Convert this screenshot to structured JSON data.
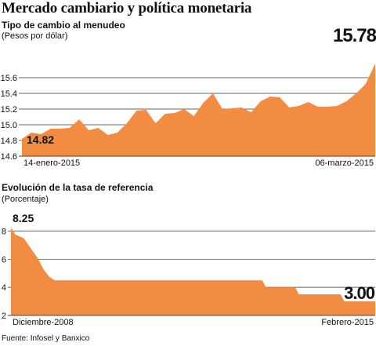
{
  "title": "Mercado cambiario y política monetaria",
  "colors": {
    "fill": "#F38C43",
    "grid": "#333333",
    "text": "#111111"
  },
  "source": "Fuente: Infosel y Banxico",
  "chart_data": [
    {
      "type": "area",
      "title": "Tipo de cambio al menudeo",
      "subtitle": "(Pesos por dólar)",
      "x_start_label": "14-enero-2015",
      "x_end_label": "06-marzo-2015",
      "ylim": [
        14.6,
        15.8
      ],
      "yticks": [
        "14.6",
        "14.8",
        "15.0",
        "15.2",
        "15.4",
        "15.6"
      ],
      "grid": true,
      "values": [
        14.82,
        14.9,
        14.88,
        14.95,
        14.95,
        14.96,
        15.07,
        14.93,
        14.96,
        14.87,
        14.9,
        15.02,
        15.18,
        15.19,
        15.02,
        15.14,
        15.15,
        15.2,
        15.11,
        15.28,
        15.4,
        15.2,
        15.21,
        15.22,
        15.16,
        15.3,
        15.36,
        15.35,
        15.22,
        15.24,
        15.29,
        15.23,
        15.23,
        15.24,
        15.3,
        15.4,
        15.52,
        15.78
      ],
      "first_label": "14.82",
      "last_label": "15.78"
    },
    {
      "type": "area",
      "title": "Evolución de la tasa de referencia",
      "subtitle": "(Porcentaje)",
      "x_start_label": "Diciembre-2008",
      "x_end_label": "Febrero-2015",
      "ylim": [
        2,
        8.25
      ],
      "yticks": [
        "2",
        "4",
        "6",
        "8"
      ],
      "grid": true,
      "points": [
        [
          0,
          8.25
        ],
        [
          0.012,
          7.75
        ],
        [
          0.035,
          7.5
        ],
        [
          0.055,
          6.75
        ],
        [
          0.075,
          6.0
        ],
        [
          0.09,
          5.25
        ],
        [
          0.105,
          4.75
        ],
        [
          0.12,
          4.5
        ],
        [
          0.69,
          4.5
        ],
        [
          0.7,
          4.0
        ],
        [
          0.78,
          4.0
        ],
        [
          0.79,
          3.5
        ],
        [
          0.905,
          3.5
        ],
        [
          0.915,
          3.0
        ],
        [
          1.0,
          3.0
        ]
      ],
      "first_label": "8.25",
      "last_label": "3.00"
    }
  ]
}
